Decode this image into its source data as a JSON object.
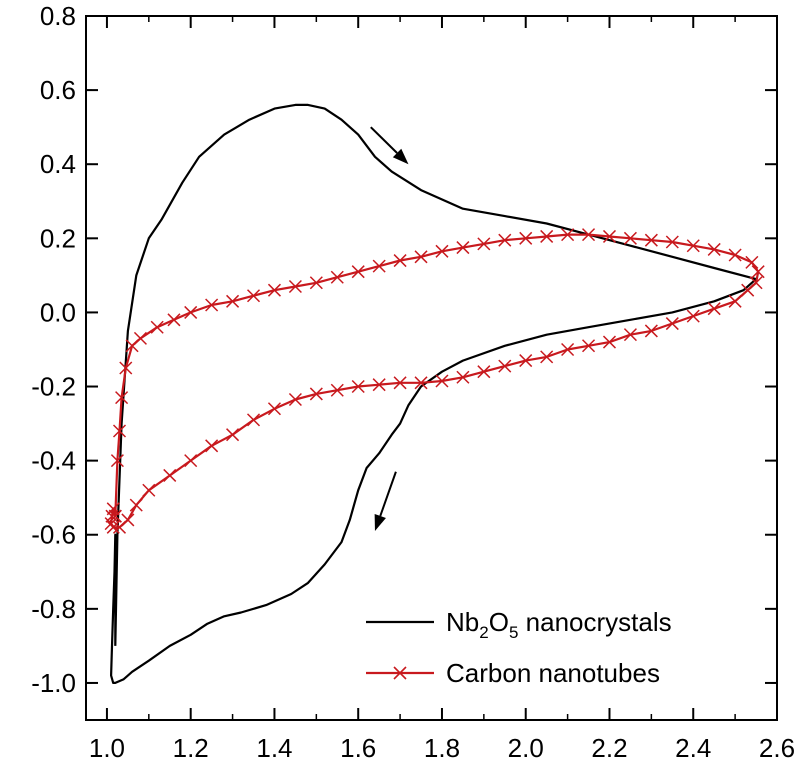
{
  "chart_data": {
    "type": "line",
    "title": "",
    "xlabel": "",
    "ylabel": "",
    "xlim": [
      0.95,
      2.6
    ],
    "ylim": [
      -1.1,
      0.8
    ],
    "x_ticks": [
      "1.0",
      "1.2",
      "1.4",
      "1.6",
      "1.8",
      "2.0",
      "2.2",
      "2.4",
      "2.6"
    ],
    "y_ticks": [
      "0.8",
      "0.6",
      "0.4",
      "0.2",
      "0.0",
      "-0.2",
      "-0.4",
      "-0.6",
      "-0.8",
      "-1.0"
    ],
    "x_tick_values": [
      1.0,
      1.2,
      1.4,
      1.6,
      1.8,
      2.0,
      2.2,
      2.4,
      2.6
    ],
    "y_tick_values": [
      0.8,
      0.6,
      0.4,
      0.2,
      0.0,
      -0.2,
      -0.4,
      -0.6,
      -0.8,
      -1.0
    ],
    "grid": false,
    "legend_position": "bottom-right",
    "legend": {
      "nb2o5": {
        "main": "Nb",
        "sub1": "2",
        "mid": "O",
        "sub2": "5",
        "rest": " nanocrystals"
      },
      "cnt": {
        "label": "Carbon nanotubes"
      }
    },
    "annotations": [
      {
        "type": "arrow",
        "from": [
          1.63,
          0.5
        ],
        "to": [
          1.72,
          0.4
        ],
        "color": "#000000"
      },
      {
        "type": "arrow",
        "from": [
          1.69,
          -0.43
        ],
        "to": [
          1.64,
          -0.59
        ],
        "color": "#000000"
      }
    ],
    "series": [
      {
        "name": "Nb2O5 nanocrystals",
        "color": "#000000",
        "marker": "none",
        "x": [
          1.02,
          1.025,
          1.035,
          1.05,
          1.07,
          1.1,
          1.13,
          1.18,
          1.22,
          1.28,
          1.34,
          1.4,
          1.45,
          1.48,
          1.52,
          1.56,
          1.6,
          1.64,
          1.68,
          1.75,
          1.85,
          1.95,
          2.05,
          2.15,
          2.25,
          2.35,
          2.45,
          2.55,
          2.52,
          2.45,
          2.35,
          2.25,
          2.15,
          2.05,
          1.95,
          1.85,
          1.8,
          1.75,
          1.72,
          1.7,
          1.68,
          1.65,
          1.62,
          1.6,
          1.59,
          1.58,
          1.56,
          1.52,
          1.48,
          1.44,
          1.38,
          1.32,
          1.28,
          1.24,
          1.2,
          1.15,
          1.1,
          1.06,
          1.04,
          1.02,
          1.015,
          1.01,
          1.012,
          1.015,
          1.018,
          1.02
        ],
        "y": [
          -0.9,
          -0.6,
          -0.3,
          -0.05,
          0.1,
          0.2,
          0.25,
          0.35,
          0.42,
          0.48,
          0.52,
          0.55,
          0.56,
          0.56,
          0.55,
          0.52,
          0.48,
          0.42,
          0.38,
          0.33,
          0.28,
          0.26,
          0.24,
          0.21,
          0.18,
          0.15,
          0.12,
          0.09,
          0.06,
          0.03,
          0.0,
          -0.02,
          -0.04,
          -0.06,
          -0.09,
          -0.13,
          -0.16,
          -0.2,
          -0.25,
          -0.3,
          -0.33,
          -0.38,
          -0.42,
          -0.48,
          -0.52,
          -0.56,
          -0.62,
          -0.68,
          -0.73,
          -0.76,
          -0.79,
          -0.81,
          -0.82,
          -0.84,
          -0.87,
          -0.9,
          -0.94,
          -0.97,
          -0.99,
          -1.0,
          -1.0,
          -0.98,
          -0.9,
          -0.8,
          -0.7,
          -0.6
        ]
      },
      {
        "name": "Carbon nanotubes",
        "color": "#c8191e",
        "marker": "x",
        "x": [
          1.02,
          1.025,
          1.03,
          1.035,
          1.045,
          1.06,
          1.08,
          1.12,
          1.16,
          1.2,
          1.25,
          1.3,
          1.35,
          1.4,
          1.45,
          1.5,
          1.55,
          1.6,
          1.65,
          1.7,
          1.75,
          1.8,
          1.85,
          1.9,
          1.95,
          2.0,
          2.05,
          2.1,
          2.15,
          2.2,
          2.25,
          2.3,
          2.35,
          2.4,
          2.45,
          2.5,
          2.54,
          2.555,
          2.55,
          2.53,
          2.5,
          2.45,
          2.4,
          2.35,
          2.3,
          2.25,
          2.2,
          2.15,
          2.1,
          2.05,
          2.0,
          1.95,
          1.9,
          1.85,
          1.8,
          1.75,
          1.7,
          1.65,
          1.6,
          1.55,
          1.5,
          1.45,
          1.4,
          1.35,
          1.3,
          1.25,
          1.2,
          1.15,
          1.1,
          1.07,
          1.05,
          1.03,
          1.015,
          1.01,
          1.012,
          1.015,
          1.02
        ],
        "y": [
          -0.55,
          -0.4,
          -0.32,
          -0.23,
          -0.15,
          -0.09,
          -0.07,
          -0.04,
          -0.02,
          0.0,
          0.02,
          0.03,
          0.045,
          0.06,
          0.07,
          0.08,
          0.095,
          0.11,
          0.125,
          0.14,
          0.15,
          0.165,
          0.175,
          0.185,
          0.195,
          0.2,
          0.205,
          0.21,
          0.21,
          0.205,
          0.2,
          0.195,
          0.19,
          0.18,
          0.17,
          0.155,
          0.135,
          0.11,
          0.08,
          0.06,
          0.03,
          0.01,
          -0.01,
          -0.03,
          -0.05,
          -0.06,
          -0.08,
          -0.09,
          -0.1,
          -0.12,
          -0.13,
          -0.145,
          -0.16,
          -0.175,
          -0.185,
          -0.19,
          -0.19,
          -0.195,
          -0.2,
          -0.21,
          -0.22,
          -0.235,
          -0.26,
          -0.29,
          -0.33,
          -0.36,
          -0.4,
          -0.44,
          -0.48,
          -0.52,
          -0.56,
          -0.58,
          -0.58,
          -0.57,
          -0.55,
          -0.53,
          -0.55
        ]
      }
    ]
  }
}
